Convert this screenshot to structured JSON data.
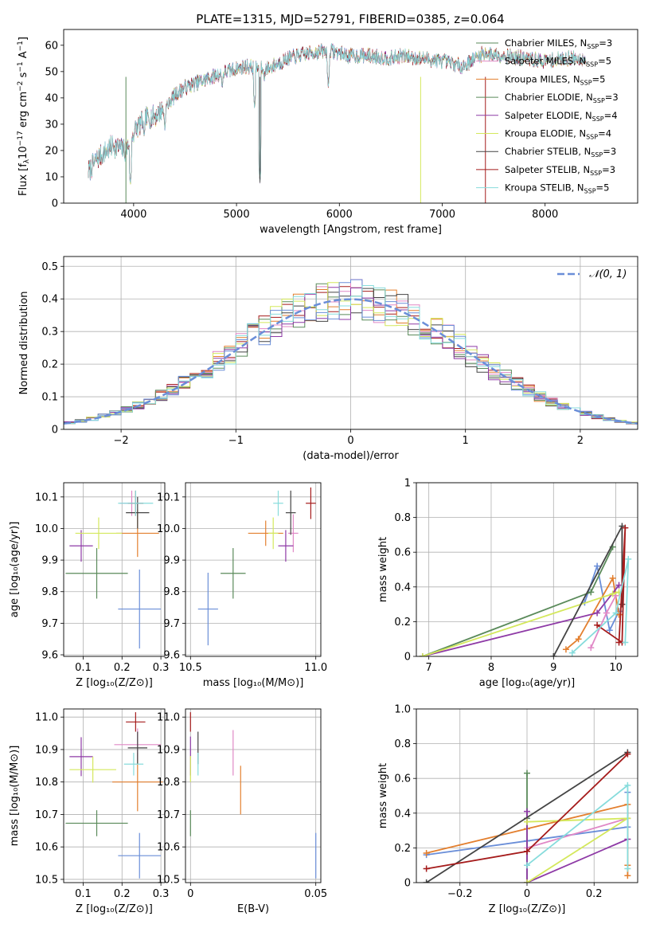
{
  "title": "PLATE=1315, MJD=52791, FIBERID=0385, z=0.064",
  "colors": [
    "#6a8ed8",
    "#e37f2e",
    "#e088c6",
    "#5a8a5a",
    "#8e3aa6",
    "#d4e85c",
    "#444444",
    "#a51b1b",
    "#87dcdc"
  ],
  "models": [
    {
      "label": "Chabrier MILES, N",
      "sub": "SSP",
      "suffix": "=3",
      "color": "#5a8a5a"
    },
    {
      "label": "Salpeter MILES, N",
      "sub": "SSP",
      "suffix": "=5",
      "color": "#e088c6"
    },
    {
      "label": "Kroupa MILES, N",
      "sub": "SSP",
      "suffix": "=5",
      "color": "#e37f2e"
    },
    {
      "label": "Chabrier ELODIE, N",
      "sub": "SSP",
      "suffix": "=3",
      "color": "#5a8a5a"
    },
    {
      "label": "Salpeter ELODIE, N",
      "sub": "SSP",
      "suffix": "=4",
      "color": "#8e3aa6"
    },
    {
      "label": "Kroupa ELODIE, N",
      "sub": "SSP",
      "suffix": "=4",
      "color": "#d4e85c"
    },
    {
      "label": "Chabrier STELIB, N",
      "sub": "SSP",
      "suffix": "=3",
      "color": "#444444"
    },
    {
      "label": "Salpeter STELIB, N",
      "sub": "SSP",
      "suffix": "=3",
      "color": "#a51b1b"
    },
    {
      "label": "Kroupa STELIB, N",
      "sub": "SSP",
      "suffix": "=5",
      "color": "#87dcdc"
    }
  ],
  "chart_data": [
    {
      "id": "spectrum",
      "type": "line",
      "xlabel": "wavelength [Angstrom, rest frame]",
      "ylabel": "Flux [fλ10⁻¹⁷ erg cm⁻² s⁻¹ A⁻¹]",
      "xlim": [
        3320,
        8900
      ],
      "ylim": [
        0,
        66
      ],
      "xticks": [
        4000,
        5000,
        6000,
        7000,
        8000
      ],
      "yticks": [
        0,
        10,
        20,
        30,
        40,
        50,
        60
      ],
      "grid": false,
      "legend": "upper right",
      "continuum_x": [
        3560,
        3650,
        3800,
        3920,
        3950,
        4000,
        4100,
        4200,
        4300,
        4400,
        4500,
        4700,
        4900,
        5100,
        5300,
        5500,
        5700,
        5900,
        6100,
        6300,
        6500,
        6600,
        6800,
        7000,
        7200,
        7400,
        7600,
        7800,
        8000,
        8200,
        8400
      ],
      "continuum_y": [
        12,
        17,
        22,
        20,
        22,
        27,
        32,
        33,
        36,
        41,
        44,
        47,
        50,
        52,
        51,
        55,
        57,
        58,
        56,
        56,
        55,
        56,
        55,
        54,
        52,
        57,
        56,
        55,
        54,
        55,
        55
      ],
      "features_x": [
        3934,
        3968,
        4102,
        4304,
        4861,
        5176,
        5228,
        5270,
        5893,
        6565,
        6790,
        7420
      ],
      "features_y": [
        0,
        7,
        25,
        28,
        43,
        36,
        8,
        46,
        44,
        56,
        0,
        0
      ]
    },
    {
      "id": "residuals",
      "type": "bar",
      "xlabel": "(data-model)/error",
      "ylabel": "Normed distribution",
      "xlim": [
        -2.5,
        2.5
      ],
      "ylim": [
        0,
        0.53
      ],
      "xticks": [
        -2,
        -1,
        0,
        1,
        2
      ],
      "yticks": [
        0.0,
        0.1,
        0.2,
        0.3,
        0.4,
        0.5
      ],
      "grid": true,
      "legend": "upper right",
      "gaussian_label": "𝒩(0, 1)",
      "gaussian_mu": 0,
      "gaussian_sigma": 1,
      "bin_width": 0.1
    },
    {
      "id": "age-Z",
      "type": "scatter",
      "xlabel": "Z [log₁₀(Z/Z⊙)]",
      "ylabel": "age  [log₁₀(age/yr)]",
      "xlim": [
        0.05,
        0.31
      ],
      "ylim": [
        9.595,
        10.145
      ],
      "xticks": [
        0.1,
        0.2,
        0.3
      ],
      "yticks": [
        9.6,
        9.7,
        9.8,
        9.9,
        10.0,
        10.1
      ],
      "grid": true,
      "points": [
        {
          "x": 0.245,
          "y": 9.745,
          "xe": 0.055,
          "ye": 0.125,
          "c": 0
        },
        {
          "x": 0.24,
          "y": 9.985,
          "xe": 0.055,
          "ye": 0.075,
          "c": 1
        },
        {
          "x": 0.225,
          "y": 10.08,
          "xe": 0.03,
          "ye": 0.04,
          "c": 2
        },
        {
          "x": 0.135,
          "y": 9.858,
          "xe": 0.08,
          "ye": 0.08,
          "c": 3
        },
        {
          "x": 0.095,
          "y": 9.945,
          "xe": 0.03,
          "ye": 0.05,
          "c": 4
        },
        {
          "x": 0.14,
          "y": 9.985,
          "xe": 0.06,
          "ye": 0.05,
          "c": 5
        },
        {
          "x": 0.24,
          "y": 10.05,
          "xe": 0.03,
          "ye": 0.05,
          "c": 6
        },
        {
          "x": 0.235,
          "y": 10.08,
          "xe": 0.02,
          "ye": 0.04,
          "c": 7
        },
        {
          "x": 0.235,
          "y": 10.08,
          "xe": 0.045,
          "ye": 0.04,
          "c": 8
        }
      ]
    },
    {
      "id": "age-mass",
      "type": "scatter",
      "xlabel": "mass [log₁₀(M/M⊙)]",
      "ylabel": "",
      "xlim": [
        10.48,
        11.02
      ],
      "ylim": [
        9.595,
        10.145
      ],
      "xticks": [
        10.5,
        11.0
      ],
      "yticks": [
        9.6,
        9.7,
        9.8,
        9.9,
        10.0,
        10.1
      ],
      "grid": true,
      "points": [
        {
          "x": 10.57,
          "y": 9.745,
          "xe": 0.04,
          "ye": 0.115,
          "c": 0
        },
        {
          "x": 10.8,
          "y": 9.985,
          "xe": 0.07,
          "ye": 0.04,
          "c": 1
        },
        {
          "x": 10.91,
          "y": 9.985,
          "xe": 0.02,
          "ye": 0.06,
          "c": 2
        },
        {
          "x": 10.67,
          "y": 9.858,
          "xe": 0.05,
          "ye": 0.08,
          "c": 3
        },
        {
          "x": 10.88,
          "y": 9.945,
          "xe": 0.03,
          "ye": 0.05,
          "c": 4
        },
        {
          "x": 10.83,
          "y": 9.985,
          "xe": 0.02,
          "ye": 0.05,
          "c": 5
        },
        {
          "x": 10.9,
          "y": 10.05,
          "xe": 0.02,
          "ye": 0.07,
          "c": 6
        },
        {
          "x": 10.98,
          "y": 10.08,
          "xe": 0.02,
          "ye": 0.05,
          "c": 7
        },
        {
          "x": 10.85,
          "y": 10.08,
          "xe": 0.02,
          "ye": 0.04,
          "c": 8
        }
      ]
    },
    {
      "id": "massweight-age",
      "type": "line",
      "xlabel": "age  [log₁₀(age/yr)]",
      "ylabel": "mass weight",
      "xlim": [
        6.8,
        10.35
      ],
      "ylim": [
        0,
        1.0
      ],
      "xticks": [
        7,
        8,
        9,
        10
      ],
      "yticks": [
        0.0,
        0.2,
        0.4,
        0.6,
        0.8,
        1.0
      ],
      "grid": true,
      "series": [
        {
          "c": 0,
          "x": [
            9.5,
            9.7,
            9.9,
            10.05
          ],
          "y": [
            0.31,
            0.52,
            0.15,
            0.26
          ]
        },
        {
          "c": 1,
          "x": [
            9.2,
            9.4,
            9.95,
            10.05
          ],
          "y": [
            0.04,
            0.1,
            0.45,
            0.24
          ]
        },
        {
          "c": 2,
          "x": [
            9.6,
            9.85,
            10.0
          ],
          "y": [
            0.05,
            0.25,
            0.35
          ]
        },
        {
          "c": 3,
          "x": [
            6.9,
            9.6,
            9.95
          ],
          "y": [
            0.0,
            0.37,
            0.63
          ]
        },
        {
          "c": 4,
          "x": [
            6.9,
            9.7,
            10.05
          ],
          "y": [
            0.0,
            0.25,
            0.41
          ]
        },
        {
          "c": 5,
          "x": [
            6.9,
            9.95,
            10.05
          ],
          "y": [
            0.0,
            0.36,
            0.37
          ]
        },
        {
          "c": 6,
          "x": [
            9.0,
            10.1,
            10.1
          ],
          "y": [
            0.0,
            0.75,
            0.3
          ]
        },
        {
          "c": 7,
          "x": [
            9.7,
            10.1,
            10.15,
            10.05
          ],
          "y": [
            0.18,
            0.08,
            0.74,
            0.08
          ]
        },
        {
          "c": 8,
          "x": [
            9.3,
            10.0,
            10.2,
            10.15
          ],
          "y": [
            0.02,
            0.25,
            0.56,
            0.08
          ]
        }
      ]
    },
    {
      "id": "mass-Z",
      "type": "scatter",
      "xlabel": "Z [log₁₀(Z/Z⊙)]",
      "ylabel": "mass [log₁₀(M/M⊙)]",
      "xlim": [
        0.05,
        0.31
      ],
      "ylim": [
        10.49,
        11.025
      ],
      "xticks": [
        0.1,
        0.2,
        0.3
      ],
      "yticks": [
        10.5,
        10.6,
        10.7,
        10.8,
        10.9,
        11.0
      ],
      "grid": true,
      "points": [
        {
          "x": 0.245,
          "y": 10.573,
          "xe": 0.055,
          "ye": 0.07,
          "c": 0
        },
        {
          "x": 0.24,
          "y": 10.8,
          "xe": 0.065,
          "ye": 0.09,
          "c": 1
        },
        {
          "x": 0.24,
          "y": 10.915,
          "xe": 0.06,
          "ye": 0.05,
          "c": 2
        },
        {
          "x": 0.135,
          "y": 10.673,
          "xe": 0.08,
          "ye": 0.04,
          "c": 3
        },
        {
          "x": 0.095,
          "y": 10.878,
          "xe": 0.03,
          "ye": 0.06,
          "c": 4
        },
        {
          "x": 0.125,
          "y": 10.838,
          "xe": 0.06,
          "ye": 0.04,
          "c": 5
        },
        {
          "x": 0.24,
          "y": 10.905,
          "xe": 0.025,
          "ye": 0.05,
          "c": 6
        },
        {
          "x": 0.235,
          "y": 10.985,
          "xe": 0.025,
          "ye": 0.03,
          "c": 7
        },
        {
          "x": 0.23,
          "y": 10.855,
          "xe": 0.025,
          "ye": 0.035,
          "c": 8
        }
      ]
    },
    {
      "id": "mass-EBV",
      "type": "scatter",
      "xlabel": "E(B-V)",
      "ylabel": "",
      "xlim": [
        -0.002,
        0.052
      ],
      "ylim": [
        10.49,
        11.025
      ],
      "xticks": [
        0.0,
        0.05
      ],
      "yticks": [
        10.5,
        10.6,
        10.7,
        10.8,
        10.9,
        11.0
      ],
      "grid": true,
      "points": [
        {
          "x": 0.05,
          "y": 10.573,
          "xe": 0,
          "ye": 0.07,
          "c": 0
        },
        {
          "x": 0.02,
          "y": 10.775,
          "xe": 0,
          "ye": 0.075,
          "c": 1
        },
        {
          "x": 0.017,
          "y": 10.89,
          "xe": 0,
          "ye": 0.07,
          "c": 2
        },
        {
          "x": 0.0,
          "y": 10.673,
          "xe": 0,
          "ye": 0.04,
          "c": 3
        },
        {
          "x": 0.0,
          "y": 10.88,
          "xe": 0,
          "ye": 0.06,
          "c": 4
        },
        {
          "x": 0.0,
          "y": 10.84,
          "xe": 0,
          "ye": 0.04,
          "c": 5
        },
        {
          "x": 0.003,
          "y": 10.905,
          "xe": 0,
          "ye": 0.05,
          "c": 6
        },
        {
          "x": 0.0,
          "y": 10.985,
          "xe": 0,
          "ye": 0.03,
          "c": 7
        },
        {
          "x": 0.003,
          "y": 10.855,
          "xe": 0,
          "ye": 0.035,
          "c": 8
        }
      ]
    },
    {
      "id": "massweight-Z",
      "type": "line",
      "xlabel": "Z [log₁₀(Z/Z⊙)]",
      "ylabel": "mass weight",
      "xlim": [
        -0.33,
        0.33
      ],
      "ylim": [
        0,
        1.0
      ],
      "xticks": [
        -0.2,
        0.0,
        0.2
      ],
      "yticks": [
        0.0,
        0.2,
        0.4,
        0.6,
        0.8,
        1.0
      ],
      "grid": true,
      "series": [
        {
          "c": 0,
          "x": [
            -0.3,
            0.0,
            0.3,
            0.3
          ],
          "y": [
            0.16,
            0.24,
            0.32,
            0.52
          ]
        },
        {
          "c": 1,
          "x": [
            -0.3,
            0.0,
            0.3,
            0.3,
            0.3
          ],
          "y": [
            0.17,
            0.31,
            0.45,
            0.1,
            0.04
          ]
        },
        {
          "c": 2,
          "x": [
            0.0,
            0.3
          ],
          "y": [
            0.2,
            0.37
          ]
        },
        {
          "c": 3,
          "x": [
            0.0,
            0.0,
            0.0
          ],
          "y": [
            0.0,
            0.63,
            0.37
          ]
        },
        {
          "c": 4,
          "x": [
            0.0,
            0.0,
            0.3
          ],
          "y": [
            0.41,
            0.0,
            0.25
          ]
        },
        {
          "c": 5,
          "x": [
            0.0,
            0.3,
            0.0
          ],
          "y": [
            0.0,
            0.37,
            0.35
          ]
        },
        {
          "c": 6,
          "x": [
            -0.3,
            0.3
          ],
          "y": [
            0.0,
            0.75
          ]
        },
        {
          "c": 7,
          "x": [
            -0.3,
            0.0,
            0.3
          ],
          "y": [
            0.08,
            0.18,
            0.74
          ]
        },
        {
          "c": 8,
          "x": [
            0.0,
            0.3,
            0.3
          ],
          "y": [
            0.1,
            0.56,
            0.08
          ]
        }
      ]
    }
  ]
}
